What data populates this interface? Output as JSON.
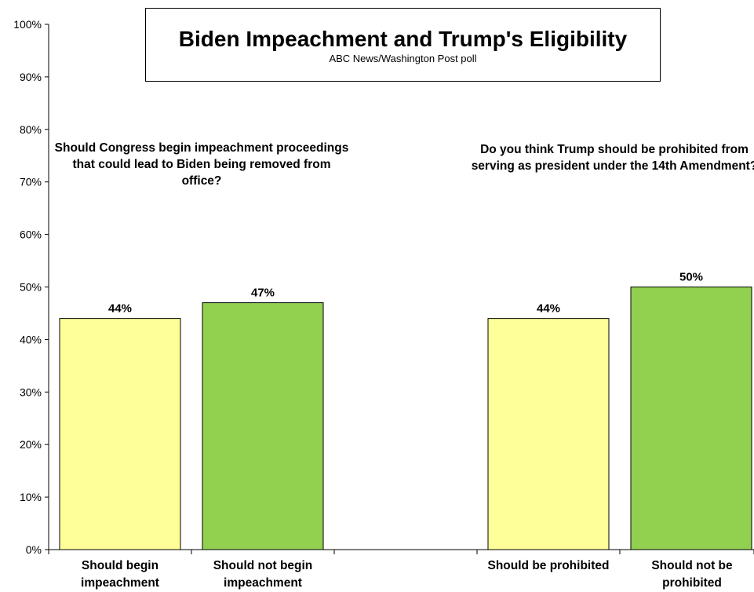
{
  "chart_data": {
    "type": "bar",
    "title": "Biden Impeachment and Trump's Eligibility",
    "subtitle": "ABC News/Washington Post poll",
    "ylim": [
      0,
      100
    ],
    "yticks": [
      "0%",
      "10%",
      "20%",
      "30%",
      "40%",
      "50%",
      "60%",
      "70%",
      "80%",
      "90%",
      "100%"
    ],
    "grid": false,
    "groups": [
      {
        "question": "Should Congress begin impeachment proceedings that could lead to Biden being removed from office?",
        "bars": [
          {
            "category": "Should begin impeachment",
            "value": 44,
            "label": "44%",
            "color": "#FFFF99"
          },
          {
            "category": "Should not begin impeachment",
            "value": 47,
            "label": "47%",
            "color": "#92D050"
          }
        ]
      },
      {
        "question": "Do you think Trump should be prohibited from serving as president under the 14th Amendment?",
        "bars": [
          {
            "category": "Should be prohibited",
            "value": 44,
            "label": "44%",
            "color": "#FFFF99"
          },
          {
            "category": "Should not be prohibited",
            "value": 50,
            "label": "50%",
            "color": "#92D050"
          }
        ]
      }
    ]
  }
}
